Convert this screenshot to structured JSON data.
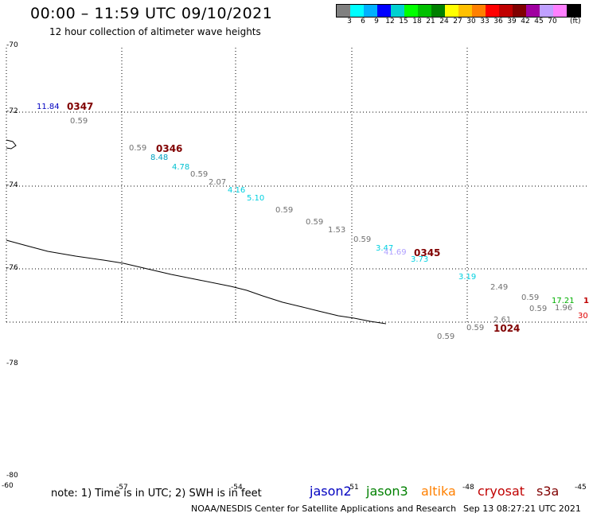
{
  "header": {
    "title": "00:00 – 11:59 UTC 09/10/2021",
    "subtitle": "12 hour collection of altimeter wave heights"
  },
  "legend": {
    "unit": "(ft)",
    "colors": [
      "#808080",
      "#00ffff",
      "#00b0ff",
      "#0000ff",
      "#00d0d0",
      "#00ff00",
      "#00c000",
      "#008000",
      "#ffff00",
      "#ffc000",
      "#ff8000",
      "#ff0000",
      "#c00000",
      "#800000",
      "#a000a0",
      "#c0a0ff",
      "#ff80ff",
      "#000000"
    ],
    "ticks": [
      "3",
      "6",
      "9",
      "12",
      "15",
      "18",
      "21",
      "24",
      "27",
      "30",
      "33",
      "36",
      "39",
      "42",
      "45",
      "70"
    ]
  },
  "axes": {
    "lat_labels": [
      "-70",
      "-72",
      "-74",
      "-76",
      "-78",
      "-80"
    ],
    "lon_labels": [
      "-60",
      "-57",
      "-54",
      "-51",
      "-48",
      "-45"
    ]
  },
  "wave_labels": [
    {
      "text": "11.84",
      "color": "#0000c0"
    },
    {
      "text": "0.59",
      "color": "#707070"
    },
    {
      "text": "0.59",
      "color": "#707070"
    },
    {
      "text": "8.48",
      "color": "#00a0c0"
    },
    {
      "text": "4.78",
      "color": "#00c0d0"
    },
    {
      "text": "0.59",
      "color": "#707070"
    },
    {
      "text": "2.07",
      "color": "#707070"
    },
    {
      "text": "4.16",
      "color": "#00d0e0"
    },
    {
      "text": "5.10",
      "color": "#00d0e0"
    },
    {
      "text": "0.59",
      "color": "#707070"
    },
    {
      "text": "0.59",
      "color": "#707070"
    },
    {
      "text": "1.53",
      "color": "#707070"
    },
    {
      "text": "0.59",
      "color": "#707070"
    },
    {
      "text": "3.47",
      "color": "#00d0e0"
    },
    {
      "text": "41.69",
      "color": "#b0a0ff"
    },
    {
      "text": "3.73",
      "color": "#00d0e0"
    },
    {
      "text": "3.19",
      "color": "#00d0e0"
    },
    {
      "text": "2.49",
      "color": "#707070"
    },
    {
      "text": "0.59",
      "color": "#707070"
    },
    {
      "text": "17.21",
      "color": "#00b000"
    },
    {
      "text": "1.96",
      "color": "#707070"
    },
    {
      "text": "0.59",
      "color": "#707070"
    },
    {
      "text": "2.61",
      "color": "#707070"
    },
    {
      "text": "0.59",
      "color": "#707070"
    },
    {
      "text": "0.59",
      "color": "#707070"
    },
    {
      "text": "1",
      "color": "#c00000"
    },
    {
      "text": "30",
      "color": "#e00000"
    }
  ],
  "orbit_labels": [
    "0347",
    "0346",
    "0345",
    "1024"
  ],
  "footer": {
    "note": "note: 1) Time is in UTC; 2) SWH is in feet",
    "satellites": [
      {
        "name": "jason2",
        "color": "#0000c0"
      },
      {
        "name": "jason3",
        "color": "#008000"
      },
      {
        "name": "altika",
        "color": "#ff8000"
      },
      {
        "name": "cryosat",
        "color": "#c00000"
      },
      {
        "name": "s3a",
        "color": "#800000"
      }
    ],
    "credit": "NOAA/NESDIS Center for Satellite Applications and Research",
    "timestamp": "Sep 13 08:27:21 UTC 2021"
  }
}
